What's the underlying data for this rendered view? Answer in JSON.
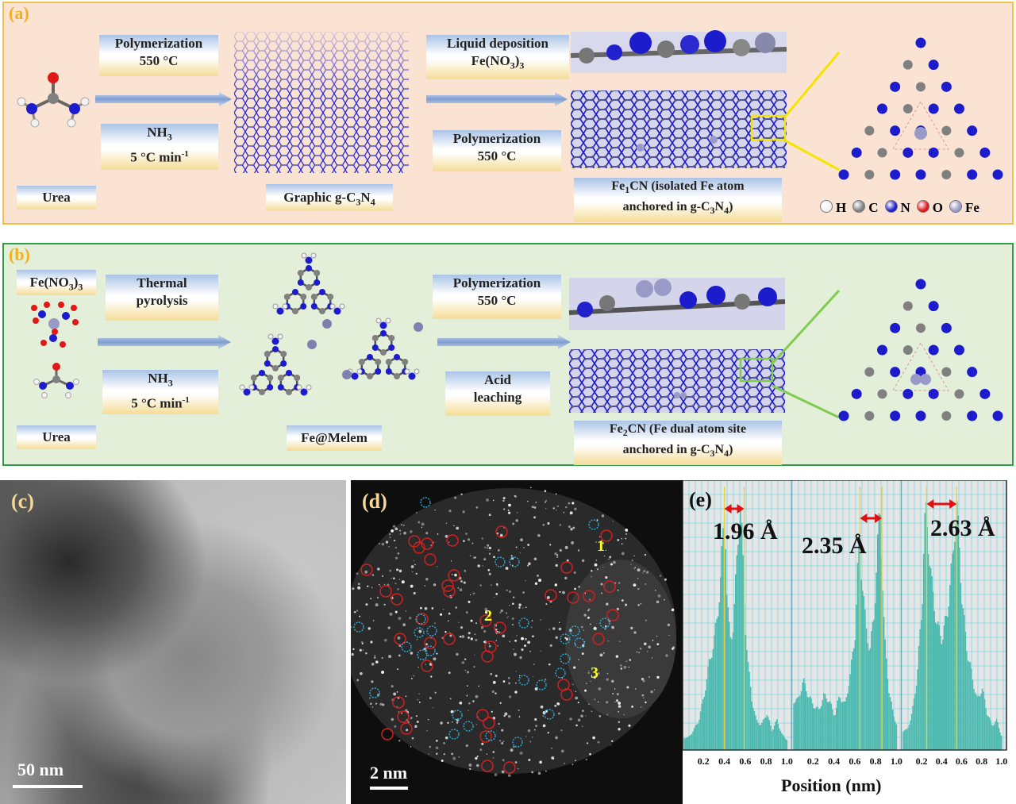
{
  "panel_a": {
    "label": "(a)",
    "step1": {
      "line1": "Polymerization",
      "line2": "550 °C"
    },
    "step2": {
      "prefix": "NH",
      "sub": "3",
      "line2": "5 °C min",
      "sup": "-1"
    },
    "step3": {
      "line1": "Liquid deposition",
      "line2_prefix": "Fe(NO",
      "line2_sub": "3",
      "line2_suffix": ")",
      "line2_sub2": "3"
    },
    "step4": {
      "line1": "Polymerization",
      "line2": "550 °C"
    },
    "precursor": "Urea",
    "intermediate": {
      "prefix": "Graphic g-C",
      "sub1": "3",
      "mid": "N",
      "sub2": "4"
    },
    "product": {
      "p1": "Fe",
      "s1": "1",
      "p2": "CN (isolated Fe atom",
      "p3": "anchored in g-C",
      "s2": "3",
      "p4": "N",
      "s3": "4",
      "p5": ")"
    },
    "legend": [
      {
        "symbol": "H",
        "color": "#f2f2f2"
      },
      {
        "symbol": "C",
        "color": "#808080"
      },
      {
        "symbol": "N",
        "color": "#1c1ccc"
      },
      {
        "symbol": "O",
        "color": "#e01818"
      },
      {
        "symbol": "Fe",
        "color": "#9a9ac8"
      }
    ]
  },
  "panel_b": {
    "label": "(b)",
    "reagent": {
      "prefix": "Fe(NO",
      "sub": "3",
      "suffix": ")",
      "sub2": "3"
    },
    "step1": {
      "line1": "Thermal",
      "line2": "pyrolysis"
    },
    "step2": {
      "prefix": "NH",
      "sub": "3",
      "line2": "5 °C min",
      "sup": "-1"
    },
    "step3": {
      "line1": "Polymerization",
      "line2": "550 °C"
    },
    "step4": {
      "line1": "Acid",
      "line2": "leaching"
    },
    "precursor": "Urea",
    "intermediate": "Fe@Melem",
    "product": {
      "p1": "Fe",
      "s1": "2",
      "p2": "CN (Fe dual atom site",
      "p3": "anchored in g-C",
      "s2": "3",
      "p4": "N",
      "s3": "4",
      "p5": ")"
    }
  },
  "panel_c": {
    "label": "(c)",
    "scale": "50 nm"
  },
  "panel_d": {
    "label": "(d)",
    "scale": "2 nm",
    "site_labels": [
      "1",
      "2",
      "3"
    ]
  },
  "panel_e": {
    "label": "(e)",
    "xlabel": "Position (nm)",
    "distances": [
      "1.96 Å",
      "2.35 Å",
      "2.63 Å"
    ],
    "ticks": [
      "0.2",
      "0.4",
      "0.6",
      "0.8",
      "1.0"
    ]
  },
  "chart_data": {
    "type": "bar",
    "xlabel": "Position (nm)",
    "xlim": [
      0.0,
      1.05
    ],
    "series": [
      {
        "x": [
          0.05,
          0.1,
          0.15,
          0.2,
          0.25,
          0.3,
          0.33,
          0.36,
          0.38,
          0.4,
          0.42,
          0.45,
          0.48,
          0.5,
          0.53,
          0.55,
          0.57,
          0.59,
          0.62,
          0.66,
          0.7,
          0.75,
          0.8,
          0.85,
          0.9,
          0.95,
          1.0
        ],
        "values": [
          0.05,
          0.08,
          0.12,
          0.22,
          0.35,
          0.45,
          0.55,
          0.7,
          0.85,
          0.98,
          0.6,
          0.45,
          0.5,
          0.65,
          0.9,
          0.97,
          0.8,
          0.55,
          0.35,
          0.2,
          0.12,
          0.1,
          0.15,
          0.08,
          0.12,
          0.06,
          0.04
        ]
      },
      {
        "x": [
          0.05,
          0.1,
          0.15,
          0.2,
          0.25,
          0.3,
          0.35,
          0.4,
          0.45,
          0.5,
          0.55,
          0.6,
          0.62,
          0.64,
          0.66,
          0.7,
          0.74,
          0.78,
          0.82,
          0.84,
          0.86,
          0.88,
          0.92,
          0.96,
          1.0
        ],
        "values": [
          0.2,
          0.28,
          0.22,
          0.18,
          0.16,
          0.22,
          0.2,
          0.14,
          0.22,
          0.18,
          0.3,
          0.48,
          0.7,
          0.85,
          0.72,
          0.5,
          0.4,
          0.55,
          0.88,
          0.96,
          0.7,
          0.45,
          0.25,
          0.15,
          0.1
        ]
      },
      {
        "x": [
          0.05,
          0.1,
          0.15,
          0.2,
          0.22,
          0.24,
          0.26,
          0.3,
          0.35,
          0.4,
          0.45,
          0.5,
          0.53,
          0.55,
          0.57,
          0.6,
          0.65,
          0.7,
          0.75,
          0.8,
          0.85,
          0.9,
          0.95,
          1.0
        ],
        "values": [
          0.08,
          0.15,
          0.3,
          0.6,
          0.9,
          0.95,
          0.85,
          0.65,
          0.5,
          0.45,
          0.55,
          0.75,
          0.92,
          0.96,
          0.85,
          0.6,
          0.4,
          0.3,
          0.2,
          0.25,
          0.15,
          0.1,
          0.12,
          0.05
        ]
      }
    ],
    "markers": [
      [
        0.4,
        0.59
      ],
      [
        0.65,
        0.86
      ],
      [
        0.25,
        0.55
      ]
    ],
    "annotations": [
      "1.96 Å",
      "2.35 Å",
      "2.63 Å"
    ]
  }
}
